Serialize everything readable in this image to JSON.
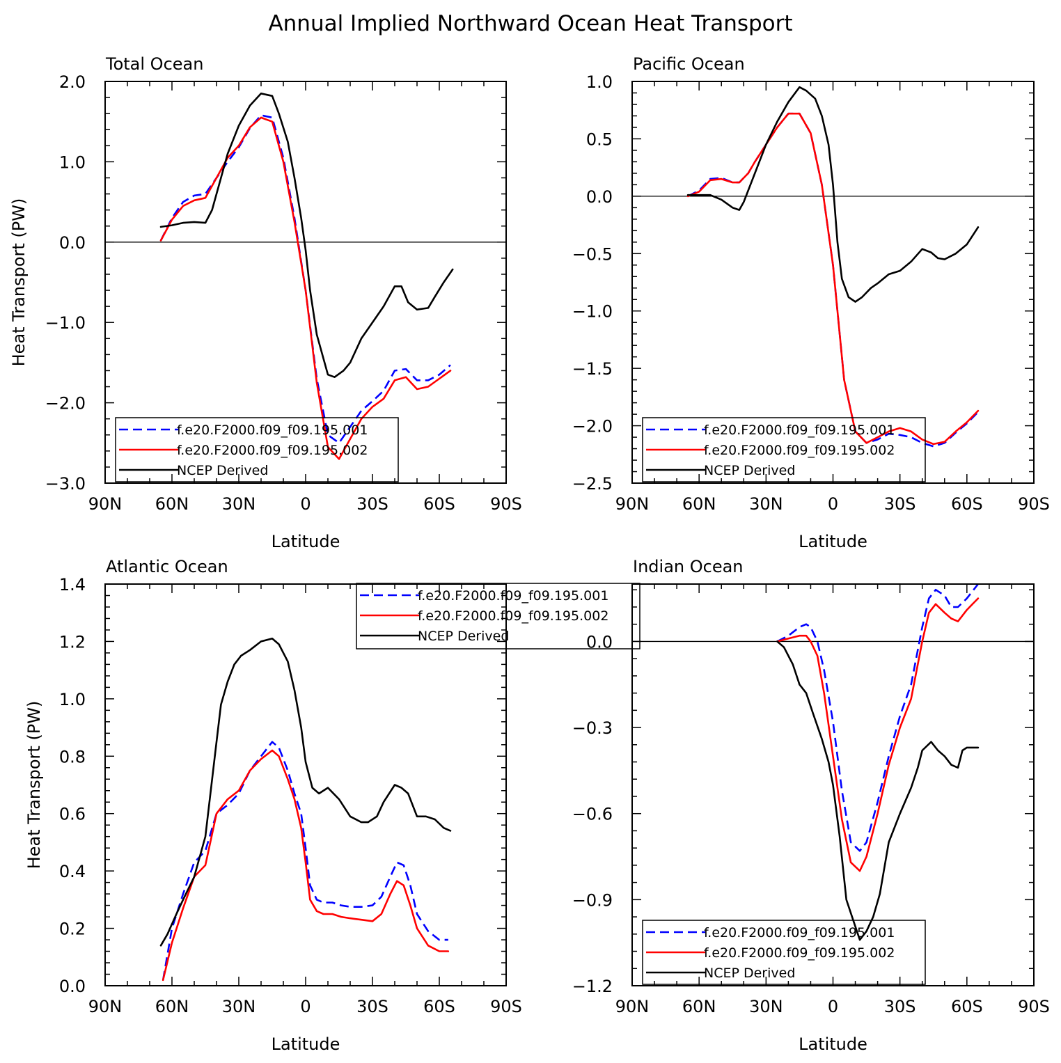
{
  "figure": {
    "title": "Annual Implied Northward Ocean Heat Transport"
  },
  "chart_data": [
    {
      "type": "line",
      "title": "Total Ocean",
      "xlabel": "Latitude",
      "ylabel": "Heat Transport (PW)",
      "xlim": [
        90,
        -90
      ],
      "ylim": [
        -3.0,
        2.0
      ],
      "xticks": [
        {
          "value": 90,
          "label": "90N"
        },
        {
          "value": 60,
          "label": "60N"
        },
        {
          "value": 30,
          "label": "30N"
        },
        {
          "value": 0,
          "label": "0"
        },
        {
          "value": -30,
          "label": "30S"
        },
        {
          "value": -60,
          "label": "60S"
        },
        {
          "value": -90,
          "label": "90S"
        }
      ],
      "yticks": [
        {
          "value": 2.0,
          "label": "2.0"
        },
        {
          "value": 1.0,
          "label": "1.0"
        },
        {
          "value": 0.0,
          "label": "0.0"
        },
        {
          "value": -1.0,
          "label": "−1.0"
        },
        {
          "value": -2.0,
          "label": "−2.0"
        },
        {
          "value": -3.0,
          "label": "−3.0"
        }
      ],
      "zero_line": true,
      "legend": "bottom-left",
      "series": [
        {
          "name": "f.e20.F2000.f09_f09.195.001",
          "color": "#0000ff",
          "dash": true,
          "x": [
            65,
            60,
            55,
            50,
            45,
            40,
            35,
            30,
            25,
            20,
            15,
            10,
            5,
            0,
            -5,
            -10,
            -15,
            -20,
            -25,
            -30,
            -35,
            -40,
            -45,
            -50,
            -55,
            -60,
            -65
          ],
          "y": [
            0.02,
            0.3,
            0.5,
            0.58,
            0.6,
            0.8,
            1.0,
            1.18,
            1.42,
            1.58,
            1.55,
            1.05,
            0.3,
            -0.6,
            -1.7,
            -2.4,
            -2.5,
            -2.3,
            -2.1,
            -1.98,
            -1.85,
            -1.6,
            -1.58,
            -1.72,
            -1.72,
            -1.65,
            -1.53
          ]
        },
        {
          "name": "f.e20.F2000.f09_f09.195.002",
          "color": "#ff0000",
          "dash": false,
          "x": [
            65,
            60,
            55,
            50,
            45,
            40,
            35,
            30,
            25,
            20,
            15,
            10,
            5,
            0,
            -5,
            -10,
            -15,
            -20,
            -25,
            -30,
            -35,
            -40,
            -45,
            -50,
            -55,
            -60,
            -65
          ],
          "y": [
            0.02,
            0.28,
            0.45,
            0.52,
            0.55,
            0.8,
            1.05,
            1.2,
            1.43,
            1.55,
            1.5,
            1.0,
            0.25,
            -0.6,
            -1.75,
            -2.55,
            -2.7,
            -2.45,
            -2.2,
            -2.05,
            -1.95,
            -1.72,
            -1.68,
            -1.83,
            -1.8,
            -1.7,
            -1.6
          ]
        },
        {
          "name": "NCEP Derived",
          "color": "#000000",
          "dash": false,
          "x": [
            65,
            60,
            55,
            50,
            45,
            42,
            38,
            35,
            30,
            25,
            20,
            15,
            12,
            8,
            5,
            2,
            0,
            -2,
            -5,
            -8,
            -10,
            -13,
            -17,
            -20,
            -25,
            -30,
            -35,
            -40,
            -43,
            -46,
            -50,
            -55,
            -58,
            -62,
            -66
          ],
          "y": [
            0.19,
            0.21,
            0.24,
            0.25,
            0.24,
            0.4,
            0.8,
            1.1,
            1.45,
            1.7,
            1.85,
            1.82,
            1.6,
            1.25,
            0.8,
            0.3,
            -0.1,
            -0.6,
            -1.15,
            -1.45,
            -1.65,
            -1.68,
            -1.6,
            -1.5,
            -1.2,
            -1.0,
            -0.8,
            -0.55,
            -0.55,
            -0.75,
            -0.84,
            -0.82,
            -0.68,
            -0.5,
            -0.34
          ]
        }
      ]
    },
    {
      "type": "line",
      "title": "Pacific Ocean",
      "xlabel": "Latitude",
      "ylabel": "",
      "xlim": [
        90,
        -90
      ],
      "ylim": [
        -2.5,
        1.0
      ],
      "xticks": [
        {
          "value": 90,
          "label": "90N"
        },
        {
          "value": 60,
          "label": "60N"
        },
        {
          "value": 30,
          "label": "30N"
        },
        {
          "value": 0,
          "label": "0"
        },
        {
          "value": -30,
          "label": "30S"
        },
        {
          "value": -60,
          "label": "60S"
        },
        {
          "value": -90,
          "label": "90S"
        }
      ],
      "yticks": [
        {
          "value": 1.0,
          "label": "1.0"
        },
        {
          "value": 0.5,
          "label": "0.5"
        },
        {
          "value": 0.0,
          "label": "0.0"
        },
        {
          "value": -0.5,
          "label": "−0.5"
        },
        {
          "value": -1.0,
          "label": "−1.0"
        },
        {
          "value": -1.5,
          "label": "−1.5"
        },
        {
          "value": -2.0,
          "label": "−2.0"
        },
        {
          "value": -2.5,
          "label": "−2.5"
        }
      ],
      "zero_line": true,
      "legend": "bottom-left",
      "series": [
        {
          "name": "f.e20.F2000.f09_f09.195.001",
          "color": "#0000ff",
          "dash": true,
          "x": [
            65,
            60,
            55,
            50,
            45,
            42,
            38,
            35,
            30,
            25,
            20,
            15,
            10,
            5,
            0,
            -5,
            -10,
            -15,
            -20,
            -25,
            -30,
            -35,
            -40,
            -45,
            -50,
            -55,
            -60,
            -65
          ],
          "y": [
            0.0,
            0.05,
            0.15,
            0.16,
            0.12,
            0.12,
            0.2,
            0.3,
            0.45,
            0.6,
            0.72,
            0.72,
            0.55,
            0.1,
            -0.6,
            -1.6,
            -2.05,
            -2.15,
            -2.12,
            -2.07,
            -2.08,
            -2.1,
            -2.15,
            -2.18,
            -2.15,
            -2.06,
            -1.98,
            -1.88
          ]
        },
        {
          "name": "f.e20.F2000.f09_f09.195.002",
          "color": "#ff0000",
          "dash": false,
          "x": [
            65,
            60,
            55,
            50,
            45,
            42,
            38,
            35,
            30,
            25,
            20,
            15,
            10,
            5,
            0,
            -5,
            -10,
            -15,
            -20,
            -25,
            -30,
            -35,
            -40,
            -45,
            -50,
            -55,
            -60,
            -65
          ],
          "y": [
            0.0,
            0.04,
            0.14,
            0.15,
            0.12,
            0.12,
            0.2,
            0.3,
            0.45,
            0.6,
            0.72,
            0.72,
            0.55,
            0.1,
            -0.6,
            -1.6,
            -2.05,
            -2.15,
            -2.1,
            -2.05,
            -2.02,
            -2.05,
            -2.12,
            -2.16,
            -2.14,
            -2.05,
            -1.97,
            -1.87
          ]
        },
        {
          "name": "NCEP Derived",
          "color": "#000000",
          "dash": false,
          "x": [
            65,
            60,
            55,
            50,
            45,
            42,
            40,
            35,
            30,
            25,
            20,
            15,
            12,
            8,
            5,
            2,
            0,
            -2,
            -4,
            -7,
            -10,
            -13,
            -17,
            -20,
            -25,
            -30,
            -35,
            -40,
            -44,
            -47,
            -50,
            -55,
            -60,
            -65
          ],
          "y": [
            0.01,
            0.01,
            0.01,
            -0.03,
            -0.1,
            -0.12,
            -0.05,
            0.2,
            0.45,
            0.65,
            0.82,
            0.95,
            0.92,
            0.85,
            0.7,
            0.45,
            0.1,
            -0.4,
            -0.72,
            -0.88,
            -0.92,
            -0.88,
            -0.8,
            -0.76,
            -0.68,
            -0.65,
            -0.57,
            -0.46,
            -0.49,
            -0.54,
            -0.55,
            -0.5,
            -0.42,
            -0.27
          ]
        }
      ]
    },
    {
      "type": "line",
      "title": "Atlantic Ocean",
      "xlabel": "Latitude",
      "ylabel": "Heat Transport (PW)",
      "xlim": [
        90,
        -90
      ],
      "ylim": [
        0.0,
        1.4
      ],
      "xticks": [
        {
          "value": 90,
          "label": "90N"
        },
        {
          "value": 60,
          "label": "60N"
        },
        {
          "value": 30,
          "label": "30N"
        },
        {
          "value": 0,
          "label": "0"
        },
        {
          "value": -30,
          "label": "30S"
        },
        {
          "value": -60,
          "label": "60S"
        },
        {
          "value": -90,
          "label": "90S"
        }
      ],
      "yticks": [
        {
          "value": 1.4,
          "label": "1.4"
        },
        {
          "value": 1.2,
          "label": "1.2"
        },
        {
          "value": 1.0,
          "label": "1.0"
        },
        {
          "value": 0.8,
          "label": "0.8"
        },
        {
          "value": 0.6,
          "label": "0.6"
        },
        {
          "value": 0.4,
          "label": "0.4"
        },
        {
          "value": 0.2,
          "label": "0.2"
        },
        {
          "value": 0.0,
          "label": "0.0"
        }
      ],
      "zero_line": false,
      "legend": "top-right",
      "series": [
        {
          "name": "f.e20.F2000.f09_f09.195.001",
          "color": "#0000ff",
          "dash": true,
          "x": [
            64,
            60,
            55,
            50,
            45,
            40,
            35,
            30,
            25,
            20,
            15,
            12,
            8,
            5,
            2,
            0,
            -2,
            -5,
            -8,
            -12,
            -16,
            -20,
            -25,
            -30,
            -34,
            -38,
            -41,
            -44,
            -47,
            -50,
            -55,
            -60,
            -64
          ],
          "y": [
            0.02,
            0.2,
            0.32,
            0.43,
            0.47,
            0.6,
            0.63,
            0.67,
            0.75,
            0.8,
            0.85,
            0.83,
            0.75,
            0.67,
            0.6,
            0.48,
            0.35,
            0.3,
            0.29,
            0.29,
            0.28,
            0.275,
            0.275,
            0.28,
            0.31,
            0.38,
            0.43,
            0.42,
            0.35,
            0.25,
            0.19,
            0.16,
            0.16
          ]
        },
        {
          "name": "f.e20.F2000.f09_f09.195.002",
          "color": "#ff0000",
          "dash": false,
          "x": [
            64,
            60,
            55,
            50,
            45,
            40,
            35,
            30,
            25,
            20,
            15,
            12,
            8,
            5,
            2,
            0,
            -2,
            -5,
            -8,
            -12,
            -16,
            -20,
            -25,
            -30,
            -34,
            -38,
            -41,
            -44,
            -47,
            -50,
            -55,
            -60,
            -64
          ],
          "y": [
            0.02,
            0.15,
            0.27,
            0.38,
            0.42,
            0.6,
            0.65,
            0.68,
            0.75,
            0.79,
            0.82,
            0.8,
            0.72,
            0.65,
            0.55,
            0.43,
            0.3,
            0.26,
            0.25,
            0.25,
            0.24,
            0.235,
            0.23,
            0.225,
            0.25,
            0.32,
            0.365,
            0.35,
            0.28,
            0.2,
            0.14,
            0.12,
            0.12
          ]
        },
        {
          "name": "NCEP Derived",
          "color": "#000000",
          "dash": false,
          "x": [
            65,
            62,
            58,
            55,
            50,
            45,
            40,
            38,
            35,
            32,
            29,
            25,
            20,
            15,
            12,
            8,
            5,
            2,
            0,
            -3,
            -6,
            -10,
            -15,
            -20,
            -25,
            -28,
            -32,
            -35,
            -40,
            -43,
            -46,
            -50,
            -54,
            -58,
            -62,
            -65
          ],
          "y": [
            0.14,
            0.18,
            0.25,
            0.3,
            0.38,
            0.52,
            0.85,
            0.98,
            1.06,
            1.12,
            1.15,
            1.17,
            1.2,
            1.21,
            1.19,
            1.13,
            1.03,
            0.9,
            0.78,
            0.69,
            0.67,
            0.69,
            0.65,
            0.59,
            0.57,
            0.57,
            0.59,
            0.64,
            0.7,
            0.69,
            0.67,
            0.59,
            0.59,
            0.58,
            0.55,
            0.54
          ]
        }
      ]
    },
    {
      "type": "line",
      "title": "Indian Ocean",
      "xlabel": "Latitude",
      "ylabel": "",
      "xlim": [
        90,
        -90
      ],
      "ylim": [
        -1.2,
        0.2
      ],
      "xticks": [
        {
          "value": 90,
          "label": "90N"
        },
        {
          "value": 60,
          "label": "60N"
        },
        {
          "value": 30,
          "label": "30N"
        },
        {
          "value": 0,
          "label": "0"
        },
        {
          "value": -30,
          "label": "30S"
        },
        {
          "value": -60,
          "label": "60S"
        },
        {
          "value": -90,
          "label": "90S"
        }
      ],
      "yticks": [
        {
          "value": 0.0,
          "label": "0.0"
        },
        {
          "value": -0.3,
          "label": "−0.3"
        },
        {
          "value": -0.6,
          "label": "−0.6"
        },
        {
          "value": -0.9,
          "label": "−0.9"
        },
        {
          "value": -1.2,
          "label": "−1.2"
        }
      ],
      "zero_line": true,
      "legend": "bottom-left",
      "series": [
        {
          "name": "f.e20.F2000.f09_f09.195.001",
          "color": "#0000ff",
          "dash": true,
          "x": [
            25,
            20,
            15,
            12,
            10,
            7,
            4,
            0,
            -4,
            -8,
            -12,
            -15,
            -20,
            -25,
            -30,
            -35,
            -40,
            -43,
            -46,
            -50,
            -53,
            -56,
            -60,
            -65
          ],
          "y": [
            0.0,
            0.02,
            0.05,
            0.06,
            0.05,
            0.0,
            -0.1,
            -0.28,
            -0.52,
            -0.7,
            -0.73,
            -0.7,
            -0.56,
            -0.4,
            -0.26,
            -0.15,
            0.05,
            0.15,
            0.18,
            0.16,
            0.12,
            0.12,
            0.15,
            0.2
          ]
        },
        {
          "name": "f.e20.F2000.f09_f09.195.002",
          "color": "#ff0000",
          "dash": false,
          "x": [
            25,
            20,
            15,
            12,
            10,
            7,
            4,
            0,
            -4,
            -8,
            -12,
            -15,
            -20,
            -25,
            -30,
            -35,
            -40,
            -43,
            -46,
            -50,
            -53,
            -56,
            -60,
            -65
          ],
          "y": [
            0.0,
            0.01,
            0.02,
            0.02,
            0.0,
            -0.05,
            -0.18,
            -0.4,
            -0.62,
            -0.77,
            -0.8,
            -0.75,
            -0.6,
            -0.43,
            -0.3,
            -0.2,
            0.0,
            0.1,
            0.13,
            0.1,
            0.08,
            0.07,
            0.11,
            0.15
          ]
        },
        {
          "name": "NCEP Derived",
          "color": "#000000",
          "dash": false,
          "x": [
            25,
            22,
            18,
            15,
            12,
            9,
            5,
            2,
            0,
            -3,
            -6,
            -9,
            -12,
            -15,
            -18,
            -21,
            -25,
            -30,
            -35,
            -38,
            -40,
            -44,
            -47,
            -50,
            -53,
            -56,
            -58,
            -60,
            -65
          ],
          "y": [
            0.0,
            -0.02,
            -0.08,
            -0.15,
            -0.18,
            -0.25,
            -0.34,
            -0.42,
            -0.5,
            -0.68,
            -0.9,
            -0.97,
            -1.04,
            -1.01,
            -0.96,
            -0.88,
            -0.7,
            -0.6,
            -0.51,
            -0.44,
            -0.38,
            -0.35,
            -0.38,
            -0.4,
            -0.43,
            -0.44,
            -0.38,
            -0.37,
            -0.37
          ]
        }
      ]
    }
  ]
}
